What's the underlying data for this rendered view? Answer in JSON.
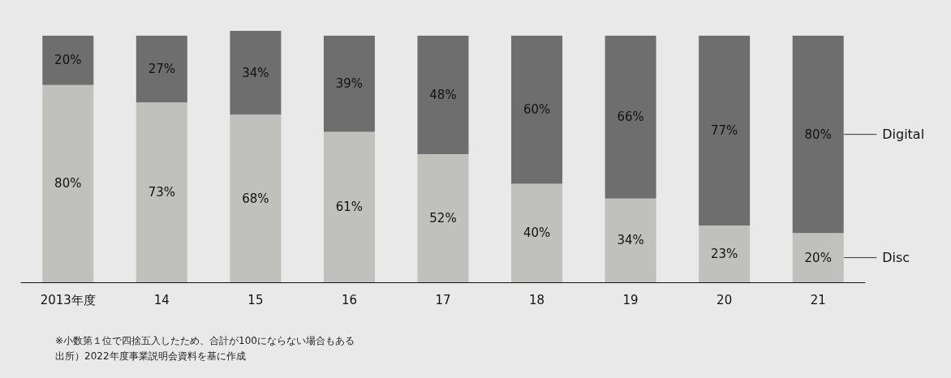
{
  "chart_data": {
    "type": "bar",
    "stacked": true,
    "categories": [
      "2013年度",
      "14",
      "15",
      "16",
      "17",
      "18",
      "19",
      "20",
      "21"
    ],
    "series": [
      {
        "name": "Disc",
        "color": "#c0c0bd",
        "values": [
          80,
          73,
          68,
          61,
          52,
          40,
          34,
          23,
          20
        ],
        "value_labels": [
          "80%",
          "73%",
          "68%",
          "61%",
          "52%",
          "40%",
          "34%",
          "23%",
          "20%"
        ]
      },
      {
        "name": "Digital",
        "color": "#6e6e6e",
        "values": [
          20,
          27,
          34,
          39,
          48,
          60,
          66,
          77,
          80
        ],
        "value_labels": [
          "20%",
          "27%",
          "34%",
          "39%",
          "48%",
          "60%",
          "66%",
          "77%",
          "80%"
        ]
      }
    ],
    "annotations": [
      "※小数第１位で四捨五入したため、合計が100にならない場合もある",
      "出所）2022年度事業説明会資料を基に作成"
    ]
  }
}
